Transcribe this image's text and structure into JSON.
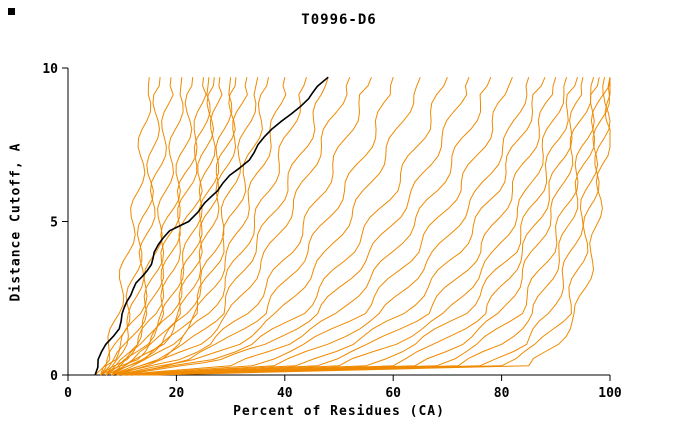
{
  "chart_data": {
    "type": "line",
    "title": "T0996-D6",
    "xlabel": "Percent of Residues (CA)",
    "ylabel": "Distance Cutoff, A",
    "xlim": [
      0,
      100
    ],
    "ylim": [
      0,
      10
    ],
    "x_ticks": [
      0,
      20,
      40,
      60,
      80,
      100
    ],
    "y_ticks": [
      0,
      5,
      10
    ],
    "grid": false,
    "legend": "none",
    "colors": {
      "model": "#ef8a00",
      "highlight": "#000000",
      "axis": "#000000",
      "background": "#ffffff"
    },
    "highlight_points": [
      [
        5,
        0
      ],
      [
        6,
        0.5
      ],
      [
        7,
        1
      ],
      [
        9,
        1.5
      ],
      [
        10,
        2
      ],
      [
        12,
        2.6
      ],
      [
        12.5,
        3
      ],
      [
        15,
        3.6
      ],
      [
        16,
        4
      ],
      [
        19,
        4.7
      ],
      [
        22,
        5
      ],
      [
        25,
        5.6
      ],
      [
        28,
        6
      ],
      [
        30,
        6.5
      ],
      [
        33,
        7
      ],
      [
        35,
        7.5
      ],
      [
        38,
        8
      ],
      [
        41,
        8.5
      ],
      [
        44,
        9
      ],
      [
        46,
        9.4
      ],
      [
        48,
        9.7
      ]
    ],
    "models": [
      [
        [
          6,
          0
        ],
        [
          7,
          0.5
        ],
        [
          8,
          1
        ],
        [
          9,
          2
        ],
        [
          11,
          4
        ],
        [
          13,
          6
        ],
        [
          14,
          8
        ],
        [
          15,
          9.7
        ]
      ],
      [
        [
          6,
          0
        ],
        [
          8,
          0.5
        ],
        [
          9,
          1
        ],
        [
          11,
          2
        ],
        [
          13,
          4
        ],
        [
          15,
          6
        ],
        [
          16,
          8
        ],
        [
          17,
          9.7
        ]
      ],
      [
        [
          7,
          0
        ],
        [
          9,
          0.5
        ],
        [
          10,
          1
        ],
        [
          12,
          2
        ],
        [
          14,
          4
        ],
        [
          16,
          6
        ],
        [
          18,
          8
        ],
        [
          19,
          9.7
        ]
      ],
      [
        [
          5,
          0
        ],
        [
          8,
          0.5
        ],
        [
          10,
          1
        ],
        [
          13,
          2
        ],
        [
          16,
          4
        ],
        [
          18,
          6
        ],
        [
          20,
          8
        ],
        [
          21,
          9.7
        ]
      ],
      [
        [
          6,
          0
        ],
        [
          9,
          0.5
        ],
        [
          11,
          1
        ],
        [
          14,
          2
        ],
        [
          17,
          4
        ],
        [
          20,
          6
        ],
        [
          22,
          8
        ],
        [
          23,
          9.7
        ]
      ],
      [
        [
          7,
          0
        ],
        [
          10,
          0.5
        ],
        [
          12,
          1
        ],
        [
          15,
          2
        ],
        [
          18,
          4
        ],
        [
          21,
          6
        ],
        [
          24,
          8
        ],
        [
          25,
          9.7
        ]
      ],
      [
        [
          6,
          0
        ],
        [
          10,
          0.5
        ],
        [
          13,
          1
        ],
        [
          16,
          2
        ],
        [
          19,
          4
        ],
        [
          22,
          6
        ],
        [
          25,
          8
        ],
        [
          26,
          9.7
        ]
      ],
      [
        [
          8,
          0
        ],
        [
          11,
          0.5
        ],
        [
          14,
          1
        ],
        [
          17,
          2
        ],
        [
          20,
          4
        ],
        [
          24,
          6
        ],
        [
          26,
          8
        ],
        [
          27,
          9.7
        ]
      ],
      [
        [
          7,
          0
        ],
        [
          11,
          0.5
        ],
        [
          14,
          1
        ],
        [
          18,
          2
        ],
        [
          22,
          4
        ],
        [
          25,
          6
        ],
        [
          27,
          8
        ],
        [
          28,
          9.7
        ]
      ],
      [
        [
          6,
          0
        ],
        [
          12,
          0.5
        ],
        [
          15,
          1
        ],
        [
          19,
          2
        ],
        [
          23,
          4
        ],
        [
          26,
          6
        ],
        [
          29,
          8
        ],
        [
          30,
          9.7
        ]
      ],
      [
        [
          8,
          0
        ],
        [
          12,
          0.5
        ],
        [
          16,
          1
        ],
        [
          20,
          2
        ],
        [
          24,
          4
        ],
        [
          27,
          6
        ],
        [
          30,
          8
        ],
        [
          31,
          9.7
        ]
      ],
      [
        [
          7,
          0
        ],
        [
          13,
          0.5
        ],
        [
          17,
          1
        ],
        [
          21,
          2
        ],
        [
          25,
          4
        ],
        [
          28,
          6
        ],
        [
          31,
          8
        ],
        [
          33,
          9.7
        ]
      ],
      [
        [
          8,
          0
        ],
        [
          13,
          0.5
        ],
        [
          17,
          1
        ],
        [
          22,
          2
        ],
        [
          27,
          4
        ],
        [
          30,
          6
        ],
        [
          33,
          8
        ],
        [
          35,
          9.7
        ]
      ],
      [
        [
          7,
          0
        ],
        [
          14,
          0.5
        ],
        [
          18,
          1
        ],
        [
          23,
          2
        ],
        [
          28,
          4
        ],
        [
          32,
          6
        ],
        [
          35,
          8
        ],
        [
          37,
          9.7
        ]
      ],
      [
        [
          8,
          0
        ],
        [
          15,
          0.5
        ],
        [
          19,
          1
        ],
        [
          24,
          2
        ],
        [
          30,
          4
        ],
        [
          34,
          6
        ],
        [
          38,
          8
        ],
        [
          40,
          9.7
        ]
      ],
      [
        [
          9,
          0
        ],
        [
          16,
          0.5
        ],
        [
          20,
          1
        ],
        [
          26,
          2
        ],
        [
          32,
          4
        ],
        [
          37,
          6
        ],
        [
          41,
          8
        ],
        [
          44,
          9.7
        ]
      ],
      [
        [
          8,
          0
        ],
        [
          17,
          0.5
        ],
        [
          22,
          1
        ],
        [
          28,
          2
        ],
        [
          34,
          4
        ],
        [
          40,
          6
        ],
        [
          45,
          8
        ],
        [
          48,
          9.7
        ]
      ],
      [
        [
          9,
          0
        ],
        [
          18,
          0.5
        ],
        [
          24,
          1
        ],
        [
          30,
          2
        ],
        [
          37,
          4
        ],
        [
          43,
          6
        ],
        [
          48,
          8
        ],
        [
          52,
          9.7
        ]
      ],
      [
        [
          8,
          0
        ],
        [
          20,
          0.5
        ],
        [
          26,
          1
        ],
        [
          33,
          2
        ],
        [
          41,
          4
        ],
        [
          47,
          6
        ],
        [
          52,
          8
        ],
        [
          56,
          9.7
        ]
      ],
      [
        [
          9,
          0
        ],
        [
          22,
          0.5
        ],
        [
          28,
          1
        ],
        [
          36,
          2
        ],
        [
          44,
          4
        ],
        [
          51,
          6
        ],
        [
          57,
          8
        ],
        [
          60,
          9.7
        ]
      ],
      [
        [
          10,
          0
        ],
        [
          24,
          0.5
        ],
        [
          31,
          1
        ],
        [
          39,
          2
        ],
        [
          48,
          4
        ],
        [
          55,
          6
        ],
        [
          61,
          8
        ],
        [
          65,
          9.7
        ]
      ],
      [
        [
          9,
          0
        ],
        [
          26,
          0.5
        ],
        [
          34,
          1
        ],
        [
          43,
          2
        ],
        [
          52,
          4
        ],
        [
          60,
          6
        ],
        [
          66,
          8
        ],
        [
          70,
          9.7
        ]
      ],
      [
        [
          10,
          0
        ],
        [
          28,
          0.5
        ],
        [
          37,
          1
        ],
        [
          46,
          2
        ],
        [
          56,
          4
        ],
        [
          64,
          6
        ],
        [
          70,
          8
        ],
        [
          74,
          9.7
        ]
      ],
      [
        [
          9,
          0
        ],
        [
          30,
          0.3
        ],
        [
          40,
          1
        ],
        [
          50,
          2
        ],
        [
          60,
          4
        ],
        [
          68,
          6
        ],
        [
          74,
          8
        ],
        [
          78,
          9.7
        ]
      ],
      [
        [
          10,
          0
        ],
        [
          34,
          0.3
        ],
        [
          44,
          1
        ],
        [
          54,
          2
        ],
        [
          64,
          4
        ],
        [
          72,
          6
        ],
        [
          78,
          8
        ],
        [
          82,
          9.7
        ]
      ],
      [
        [
          11,
          0
        ],
        [
          38,
          0.3
        ],
        [
          48,
          1
        ],
        [
          58,
          2
        ],
        [
          68,
          4
        ],
        [
          76,
          6
        ],
        [
          82,
          8
        ],
        [
          85,
          9.7
        ]
      ],
      [
        [
          10,
          0
        ],
        [
          42,
          0.3
        ],
        [
          52,
          1
        ],
        [
          62,
          2
        ],
        [
          72,
          4
        ],
        [
          79,
          6
        ],
        [
          84,
          8
        ],
        [
          88,
          9.7
        ]
      ],
      [
        [
          12,
          0
        ],
        [
          46,
          0.3
        ],
        [
          56,
          1
        ],
        [
          66,
          2
        ],
        [
          76,
          4
        ],
        [
          82,
          6
        ],
        [
          87,
          8
        ],
        [
          90,
          9.7
        ]
      ],
      [
        [
          11,
          0
        ],
        [
          50,
          0.3
        ],
        [
          60,
          1
        ],
        [
          70,
          2
        ],
        [
          79,
          4
        ],
        [
          85,
          6
        ],
        [
          89,
          8
        ],
        [
          92,
          9.7
        ]
      ],
      [
        [
          12,
          0
        ],
        [
          55,
          0.3
        ],
        [
          64,
          1
        ],
        [
          73,
          2
        ],
        [
          82,
          4
        ],
        [
          87,
          6
        ],
        [
          91,
          8
        ],
        [
          94,
          9.7
        ]
      ],
      [
        [
          13,
          0
        ],
        [
          60,
          0.3
        ],
        [
          68,
          1
        ],
        [
          77,
          2
        ],
        [
          84,
          4
        ],
        [
          89,
          6
        ],
        [
          93,
          8
        ],
        [
          95,
          9.7
        ]
      ],
      [
        [
          12,
          0
        ],
        [
          64,
          0.3
        ],
        [
          72,
          1
        ],
        [
          80,
          2
        ],
        [
          86,
          4
        ],
        [
          91,
          6
        ],
        [
          94,
          8
        ],
        [
          97,
          9.7
        ]
      ],
      [
        [
          14,
          0
        ],
        [
          68,
          0.3
        ],
        [
          76,
          1
        ],
        [
          83,
          2
        ],
        [
          89,
          4
        ],
        [
          93,
          6
        ],
        [
          96,
          8
        ],
        [
          98,
          9.7
        ]
      ],
      [
        [
          13,
          0
        ],
        [
          72,
          0.3
        ],
        [
          80,
          1
        ],
        [
          86,
          2
        ],
        [
          91,
          4
        ],
        [
          94,
          6
        ],
        [
          97,
          8
        ],
        [
          99,
          9.7
        ]
      ],
      [
        [
          15,
          0
        ],
        [
          76,
          0.3
        ],
        [
          84,
          1
        ],
        [
          89,
          2
        ],
        [
          93,
          4
        ],
        [
          96,
          6
        ],
        [
          98,
          8
        ],
        [
          100,
          9.7
        ]
      ],
      [
        [
          14,
          0
        ],
        [
          80,
          0.3
        ],
        [
          87,
          1
        ],
        [
          92,
          2
        ],
        [
          95,
          4
        ],
        [
          97,
          6
        ],
        [
          99,
          8
        ],
        [
          100,
          9.7
        ]
      ],
      [
        [
          16,
          0
        ],
        [
          85,
          0.3
        ],
        [
          90,
          1
        ],
        [
          94,
          2
        ],
        [
          97,
          4
        ],
        [
          98,
          6
        ],
        [
          100,
          8
        ],
        [
          100,
          9.7
        ]
      ]
    ]
  }
}
